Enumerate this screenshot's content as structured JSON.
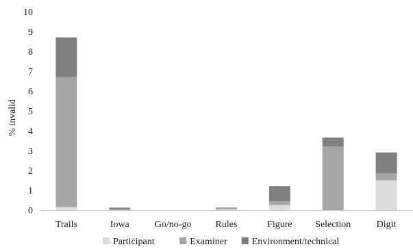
{
  "chart_data": {
    "type": "bar",
    "stacked": true,
    "title": "",
    "xlabel": "",
    "ylabel": "% invalid",
    "ylim": [
      0,
      10
    ],
    "yticks": [
      0,
      1,
      2,
      3,
      4,
      5,
      6,
      7,
      8,
      9,
      10
    ],
    "grid": false,
    "legend_position": "bottom",
    "categories": [
      "Trails",
      "Iowa",
      "Go/no-go",
      "Rules",
      "Figure",
      "Selection",
      "Digit"
    ],
    "series": [
      {
        "name": "Participant",
        "color": "#dcdcdc",
        "values": [
          0.15,
          0.0,
          0.0,
          0.03,
          0.25,
          0.0,
          1.5
        ]
      },
      {
        "name": "Examiner",
        "color": "#a6a6a6",
        "values": [
          6.55,
          0.05,
          0.0,
          0.1,
          0.2,
          3.2,
          0.35
        ]
      },
      {
        "name": "Environment/technical",
        "color": "#7f7f7f",
        "values": [
          2.0,
          0.07,
          0.0,
          0.0,
          0.75,
          0.45,
          1.05
        ]
      }
    ]
  }
}
